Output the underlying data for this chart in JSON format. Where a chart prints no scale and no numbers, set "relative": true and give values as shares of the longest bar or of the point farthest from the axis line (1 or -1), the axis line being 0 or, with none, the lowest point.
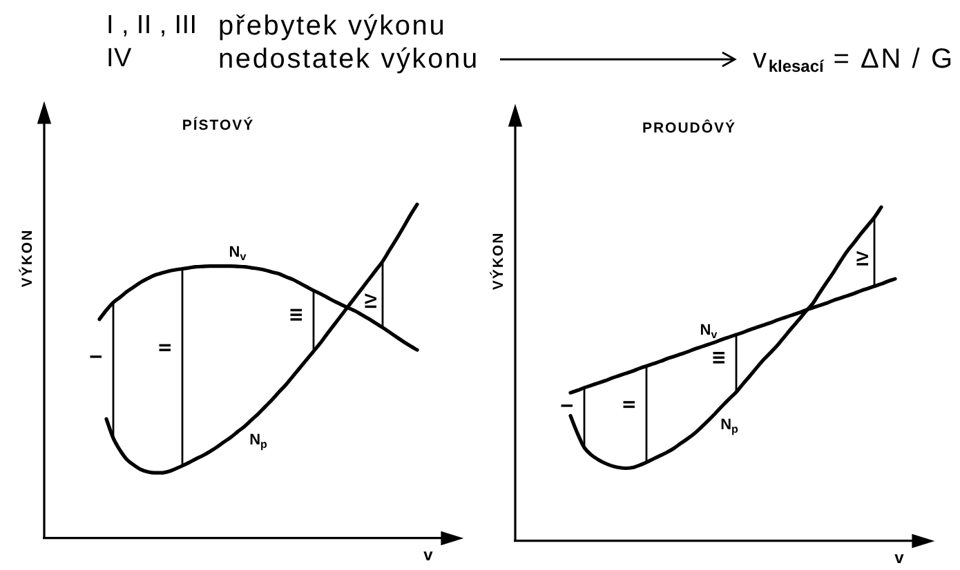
{
  "chart_data": [
    {
      "type": "other",
      "annotations": [
        "I , II , III",
        "přebytek výkonu",
        "IV",
        "nedostatek výkonu",
        "v$_{klesací}$ = ΔN / G"
      ]
    },
    {
      "type": "line",
      "title": "PÍSTOVÝ",
      "xlabel": "v",
      "ylabel": "VÝKON",
      "relative": true,
      "tick_labels": false,
      "annotations": [
        "I",
        "II",
        "III",
        "IV"
      ],
      "categories": [
        null,
        null,
        null,
        null,
        null,
        null,
        null,
        null,
        null,
        null,
        null,
        null,
        null,
        null,
        null,
        null,
        null,
        null,
        null,
        null,
        null,
        null,
        null,
        null,
        null,
        null,
        null,
        null,
        null,
        null,
        null,
        null,
        null,
        null,
        null,
        null,
        null,
        null,
        null,
        null,
        null,
        null,
        null,
        null,
        null,
        null,
        null,
        null,
        null,
        null,
        null,
        null,
        null,
        null,
        null,
        null,
        null,
        null,
        null,
        null,
        null
      ],
      "series": [
        {
          "name": "N$_{v}$",
          "color": "#000000",
          "values": [
            null,
            null,
            null,
            null,
            null,
            null,
            null,
            null,
            0.656,
            0.683,
            0.706,
            0.722,
            0.739,
            0.753,
            0.767,
            0.778,
            0.788,
            0.794,
            0.8,
            0.804,
            0.807,
            0.81,
            0.813,
            0.814,
            0.815,
            0.815,
            0.815,
            0.815,
            0.814,
            0.813,
            0.81,
            0.807,
            0.803,
            0.797,
            0.792,
            0.783,
            0.775,
            0.764,
            0.753,
            0.742,
            0.732,
            0.721,
            0.71,
            0.7,
            0.69,
            0.681,
            0.669,
            0.657,
            0.644,
            0.631,
            0.617,
            0.603,
            0.589,
            0.576,
            0.564,
            null,
            null,
            null,
            null,
            null,
            null
          ]
        },
        {
          "name": "N$_{p}$",
          "color": "#000000",
          "values": [
            null,
            null,
            null,
            null,
            null,
            null,
            null,
            null,
            null,
            0.357,
            0.3,
            0.263,
            0.235,
            0.219,
            0.206,
            0.199,
            0.196,
            0.196,
            0.2,
            0.208,
            0.217,
            0.227,
            0.238,
            0.248,
            0.26,
            0.273,
            0.288,
            0.302,
            0.319,
            0.335,
            0.354,
            0.373,
            0.394,
            0.415,
            0.438,
            0.46,
            0.485,
            0.51,
            0.535,
            0.56,
            0.585,
            0.613,
            0.64,
            0.667,
            0.694,
            0.721,
            0.748,
            0.775,
            0.802,
            0.829,
            0.863,
            0.896,
            0.931,
            0.967,
            1,
            null,
            null,
            null,
            null,
            null,
            null
          ]
        }
      ]
    },
    {
      "type": "line",
      "title": "PROUDÔVÝ",
      "xlabel": "v",
      "ylabel": "VÝKON",
      "relative": true,
      "tick_labels": false,
      "annotations": [
        "I",
        "II",
        "III",
        "IV"
      ],
      "categories": [
        null,
        null,
        null,
        null,
        null,
        null,
        null,
        null,
        null,
        null,
        null,
        null,
        null,
        null,
        null,
        null,
        null,
        null,
        null,
        null,
        null,
        null,
        null,
        null,
        null,
        null,
        null,
        null,
        null,
        null,
        null,
        null,
        null,
        null,
        null,
        null,
        null,
        null,
        null,
        null,
        null,
        null,
        null,
        null,
        null,
        null,
        null,
        null,
        null,
        null,
        null,
        null,
        null,
        null,
        null,
        null,
        null,
        null,
        null,
        null,
        null
      ],
      "series": [
        {
          "name": "N$_{v}$",
          "color": "#000000",
          "values": [
            null,
            null,
            null,
            null,
            null,
            null,
            null,
            null,
            0.444,
            0.451,
            0.459,
            0.466,
            0.473,
            0.48,
            0.488,
            0.495,
            0.502,
            0.509,
            0.517,
            0.524,
            0.531,
            0.538,
            0.546,
            0.553,
            0.56,
            0.567,
            0.575,
            0.582,
            0.589,
            0.596,
            0.604,
            0.611,
            0.618,
            0.625,
            0.633,
            0.64,
            0.647,
            0.654,
            0.662,
            0.669,
            0.676,
            0.683,
            0.691,
            0.698,
            0.705,
            0.712,
            0.72,
            0.727,
            0.734,
            0.741,
            0.749,
            0.756,
            0.763,
            0.77,
            0.778,
            0.785,
            null,
            null,
            null,
            null,
            null
          ]
        },
        {
          "name": "N$_{p}$",
          "color": "#000000",
          "values": [
            null,
            null,
            null,
            null,
            null,
            null,
            null,
            null,
            0.375,
            0.323,
            0.28,
            0.258,
            0.244,
            0.233,
            0.225,
            0.22,
            0.218,
            0.22,
            0.227,
            0.236,
            0.246,
            0.256,
            0.266,
            0.278,
            0.293,
            0.307,
            0.323,
            0.342,
            0.362,
            0.383,
            0.405,
            0.426,
            0.446,
            0.471,
            0.495,
            0.52,
            0.544,
            0.565,
            0.587,
            0.612,
            0.637,
            0.661,
            0.686,
            0.709,
            0.741,
            0.772,
            0.802,
            0.835,
            0.866,
            0.892,
            0.919,
            0.944,
            0.969,
            1,
            null,
            null,
            null,
            null,
            null,
            null,
            null
          ]
        }
      ]
    }
  ]
}
